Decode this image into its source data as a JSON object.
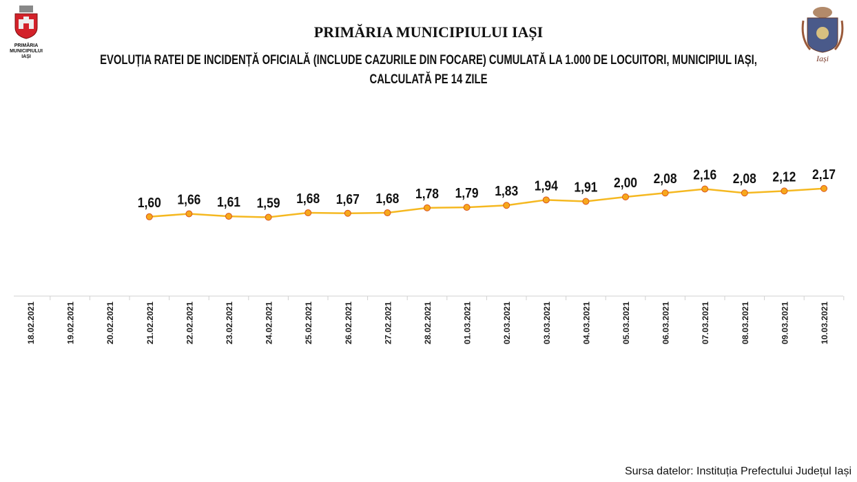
{
  "header": {
    "logo_left_text": "PRIMĂRIA MUNICIPIULUI IAȘI",
    "title": "PRIMĂRIA MUNICIPIULUI IAȘI",
    "subtitle": "EVOLUȚIA RATEI DE INCIDENȚĂ OFICIALĂ (INCLUDE CAZURILE DIN FOCARE) CUMULATĂ LA 1.000 DE LOCUITORI, MUNICIPIUL IAȘI, CALCULATĂ PE 14 ZILE",
    "logo_right_text": "Iași"
  },
  "footer": {
    "source": "Sursa datelor: Instituția Prefectului Județul Iași"
  },
  "chart_data": {
    "type": "line",
    "title": "EVOLUȚIA RATEI DE INCIDENȚĂ OFICIALĂ (INCLUDE CAZURILE DIN FOCARE) CUMULATĂ LA 1.000 DE LOCUITORI, MUNICIPIUL IAȘI, CALCULATĂ PE 14 ZILE",
    "categories": [
      "18.02.2021",
      "19.02.2021",
      "20.02.2021",
      "21.02.2021",
      "22.02.2021",
      "23.02.2021",
      "24.02.2021",
      "25.02.2021",
      "26.02.2021",
      "27.02.2021",
      "28.02.2021",
      "01.03.2021",
      "02.03.2021",
      "03.03.2021",
      "04.03.2021",
      "05.03.2021",
      "06.03.2021",
      "07.03.2021",
      "08.03.2021",
      "09.03.2021",
      "10.03.2021"
    ],
    "values": [
      null,
      null,
      null,
      1.6,
      1.66,
      1.61,
      1.59,
      1.68,
      1.67,
      1.68,
      1.78,
      1.79,
      1.83,
      1.94,
      1.91,
      2.0,
      2.08,
      2.16,
      2.08,
      2.12,
      2.17
    ],
    "labels": [
      null,
      null,
      null,
      "1,60",
      "1,66",
      "1,61",
      "1,59",
      "1,68",
      "1,67",
      "1,68",
      "1,78",
      "1,79",
      "1,83",
      "1,94",
      "1,91",
      "2,00",
      "2,08",
      "2,16",
      "2,08",
      "2,12",
      "2,17"
    ],
    "ylim": [
      0,
      4
    ],
    "grid": false,
    "line_color": "#f5b820",
    "marker_color": "#f7a81b",
    "marker_edge": "#d9541e"
  }
}
